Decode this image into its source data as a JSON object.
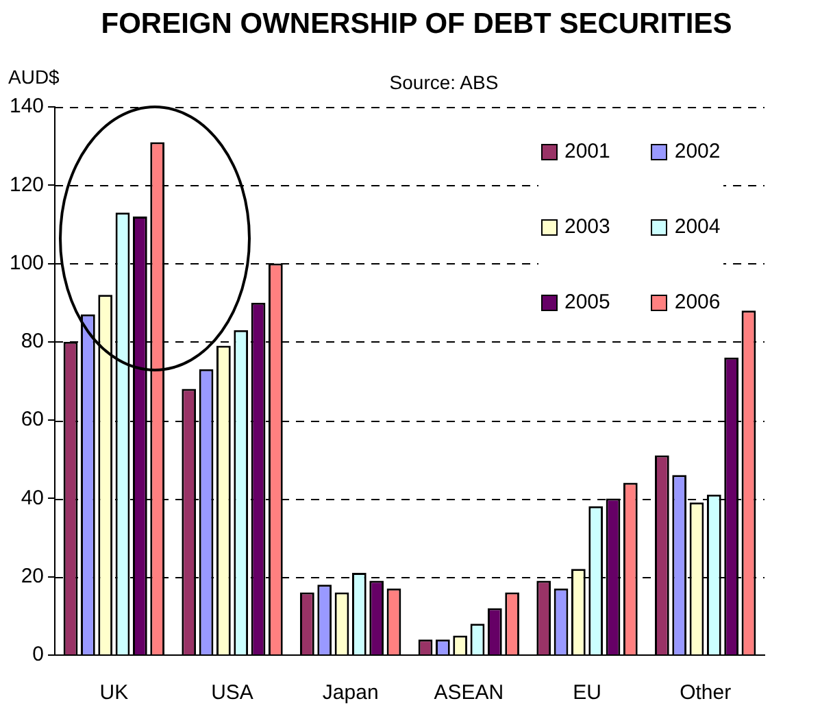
{
  "chart_data": {
    "type": "bar",
    "title": "FOREIGN OWNERSHIP OF DEBT SECURITIES",
    "subtitle": "Source: ABS",
    "ylabel": "AUD$",
    "categories": [
      "UK",
      "USA",
      "Japan",
      "ASEAN",
      "EU",
      "Other"
    ],
    "series": [
      {
        "name": "2001",
        "color": "#993366",
        "values": [
          80,
          68,
          16,
          4,
          19,
          51
        ]
      },
      {
        "name": "2002",
        "color": "#9999ff",
        "values": [
          87,
          73,
          18,
          4,
          17,
          46
        ]
      },
      {
        "name": "2003",
        "color": "#ffffcc",
        "values": [
          92,
          79,
          16,
          5,
          22,
          39
        ]
      },
      {
        "name": "2004",
        "color": "#ccffff",
        "values": [
          113,
          83,
          21,
          8,
          38,
          41
        ]
      },
      {
        "name": "2005",
        "color": "#660066",
        "values": [
          112,
          90,
          19,
          12,
          40,
          76
        ]
      },
      {
        "name": "2006",
        "color": "#ff8080",
        "values": [
          131,
          100,
          17,
          16,
          44,
          88
        ]
      }
    ],
    "ylim": [
      0,
      140
    ],
    "yticks": [
      0,
      20,
      40,
      60,
      80,
      100,
      120,
      140
    ],
    "grid": "y",
    "legend": "top right"
  }
}
